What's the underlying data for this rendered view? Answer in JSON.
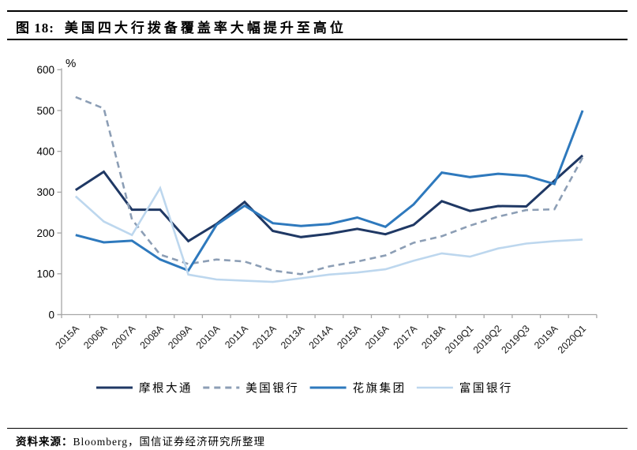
{
  "header": {
    "figure_label": "图 18:",
    "title": "美国四大行拨备覆盖率大幅提升至高位"
  },
  "footer": {
    "source_label": "资料来源：",
    "source_text": "Bloomberg，国信证券经济研究所整理"
  },
  "chart_data": {
    "type": "line",
    "title": "美国四大行拨备覆盖率大幅提升至高位",
    "unit_label": "%",
    "ylim": [
      0,
      600
    ],
    "yticks": [
      0,
      100,
      200,
      300,
      400,
      500,
      600
    ],
    "grid": false,
    "legend_position": "bottom",
    "axis_color": "#A6A6A6",
    "categories": [
      "2015A",
      "2006A",
      "2007A",
      "2008A",
      "2009A",
      "2010A",
      "2011A",
      "2012A",
      "2013A",
      "2014A",
      "2015A",
      "2016A",
      "2017A",
      "2018A",
      "2019Q1",
      "2019Q2",
      "2019Q3",
      "2019A",
      "2020Q1"
    ],
    "series": [
      {
        "id": "jpmorgan-chase",
        "name": "摩根大通",
        "color": "#1F3864",
        "line_style": "solid",
        "values": [
          305,
          350,
          257,
          257,
          180,
          222,
          276,
          205,
          190,
          198,
          210,
          197,
          220,
          278,
          254,
          266,
          265,
          328,
          390
        ]
      },
      {
        "id": "bank-of-america",
        "name": "美国银行",
        "color": "#8C9EB5",
        "line_style": "dashed",
        "values": [
          533,
          505,
          233,
          147,
          124,
          135,
          130,
          108,
          99,
          118,
          130,
          145,
          176,
          192,
          218,
          240,
          256,
          258,
          385
        ]
      },
      {
        "id": "citigroup",
        "name": "花旗集团",
        "color": "#2E79BD",
        "line_style": "solid",
        "values": [
          195,
          177,
          181,
          135,
          108,
          220,
          267,
          224,
          217,
          222,
          238,
          215,
          270,
          348,
          337,
          345,
          340,
          320,
          500
        ]
      },
      {
        "id": "wells-fargo",
        "name": "富国银行",
        "color": "#BDD7EE",
        "line_style": "solid",
        "values": [
          290,
          228,
          195,
          310,
          98,
          86,
          83,
          80,
          89,
          98,
          103,
          111,
          132,
          150,
          142,
          162,
          174,
          180,
          184
        ]
      }
    ]
  }
}
